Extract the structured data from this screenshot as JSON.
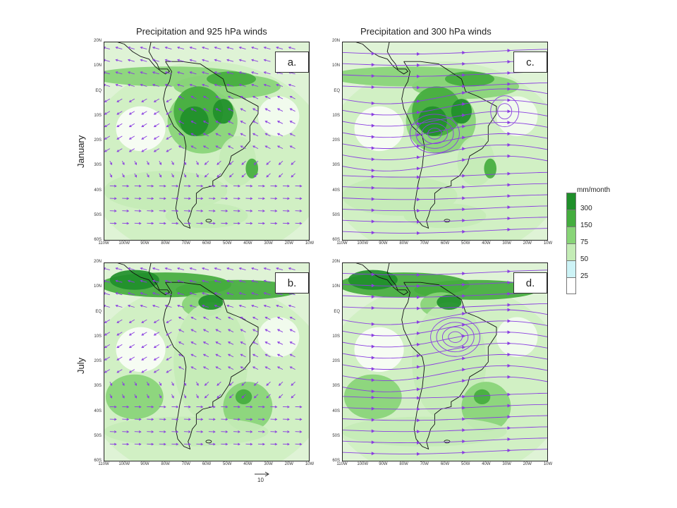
{
  "titles": {
    "left": "Precipitation and 925 hPa winds",
    "right": "Precipitation and 300 hPa winds"
  },
  "rows": {
    "top": "January",
    "bottom": "July"
  },
  "axes": {
    "lat": [
      "20N",
      "10N",
      "EQ",
      "10S",
      "20S",
      "30S",
      "40S",
      "50S",
      "60S"
    ],
    "lon": [
      "110W",
      "100W",
      "90W",
      "80W",
      "70W",
      "60W",
      "50W",
      "40W",
      "30W",
      "20W",
      "10W"
    ]
  },
  "panels": [
    {
      "label": "a.",
      "kind": "vectors",
      "month": "January",
      "level": "925 hPa"
    },
    {
      "label": "c.",
      "kind": "streamlines",
      "month": "January",
      "level": "300 hPa"
    },
    {
      "label": "b.",
      "kind": "vectors",
      "month": "July",
      "level": "925 hPa"
    },
    {
      "label": "d.",
      "kind": "streamlines",
      "month": "July",
      "level": "300 hPa"
    }
  ],
  "legend": {
    "unit": "mm/month",
    "labels": [
      "300",
      "150",
      "75",
      "50",
      "25"
    ],
    "colors": [
      "#1f8f2a",
      "#44ad3e",
      "#88d477",
      "#c4ecb6",
      "#cdf3f6",
      "#ffffff"
    ]
  },
  "reference_vector": "10",
  "colors": {
    "wind": "#8a3ee0",
    "coast": "#111111"
  }
}
